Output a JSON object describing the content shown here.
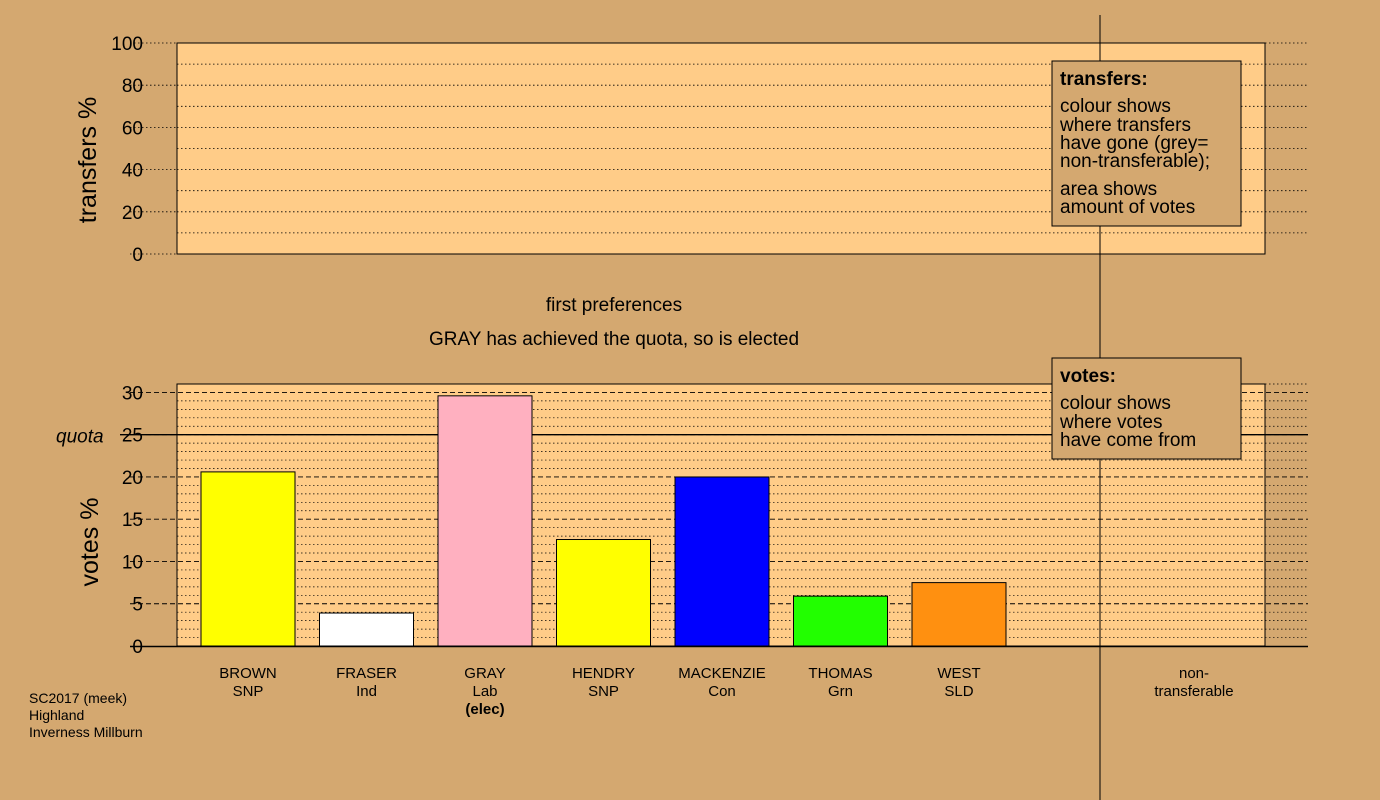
{
  "chart_data": [
    {
      "type": "bar",
      "panel": "transfers",
      "ylabel": "transfers %",
      "ylim": [
        0,
        100
      ],
      "yticks": [
        0,
        20,
        40,
        60,
        80,
        100
      ],
      "series": [],
      "legend": {
        "title": "transfers:",
        "lines": [
          "colour shows",
          "where transfers",
          "have gone (grey=",
          "non-transferable);",
          "area shows",
          "amount of votes"
        ]
      }
    },
    {
      "type": "bar",
      "panel": "votes",
      "ylabel": "votes %",
      "ylim": [
        0,
        31
      ],
      "yticks": [
        0,
        5,
        10,
        15,
        20,
        25,
        30
      ],
      "quota": {
        "label": "quota",
        "value": 25
      },
      "stage_label": "first preferences",
      "status": "GRAY has achieved the quota, so is elected",
      "categories": [
        {
          "name": "BROWN",
          "party": "SNP",
          "note": "",
          "value": 20.6,
          "color": "#ffff00"
        },
        {
          "name": "FRASER",
          "party": "Ind",
          "note": "",
          "value": 3.9,
          "color": "#ffffff"
        },
        {
          "name": "GRAY",
          "party": "Lab",
          "note": "(elec)",
          "value": 29.6,
          "color": "#ffb0c0"
        },
        {
          "name": "HENDRY",
          "party": "SNP",
          "note": "",
          "value": 12.6,
          "color": "#ffff00"
        },
        {
          "name": "MACKENZIE",
          "party": "Con",
          "note": "",
          "value": 20.0,
          "color": "#0000ff"
        },
        {
          "name": "THOMAS",
          "party": "Grn",
          "note": "",
          "value": 5.9,
          "color": "#22ff00"
        },
        {
          "name": "WEST",
          "party": "SLD",
          "note": "",
          "value": 7.5,
          "color": "#ff9010"
        }
      ],
      "nontransferable": {
        "line1": "non-",
        "line2": "transferable"
      },
      "legend": {
        "title": "votes:",
        "lines": [
          "colour shows",
          "where votes",
          "have come from"
        ]
      }
    }
  ],
  "footer": [
    "SC2017 (meek)",
    "Highland",
    "Inverness Millburn"
  ],
  "colors": {
    "background": "#d4a870",
    "plot_area": "#ffcc88",
    "legend_box": "#d4a870"
  }
}
